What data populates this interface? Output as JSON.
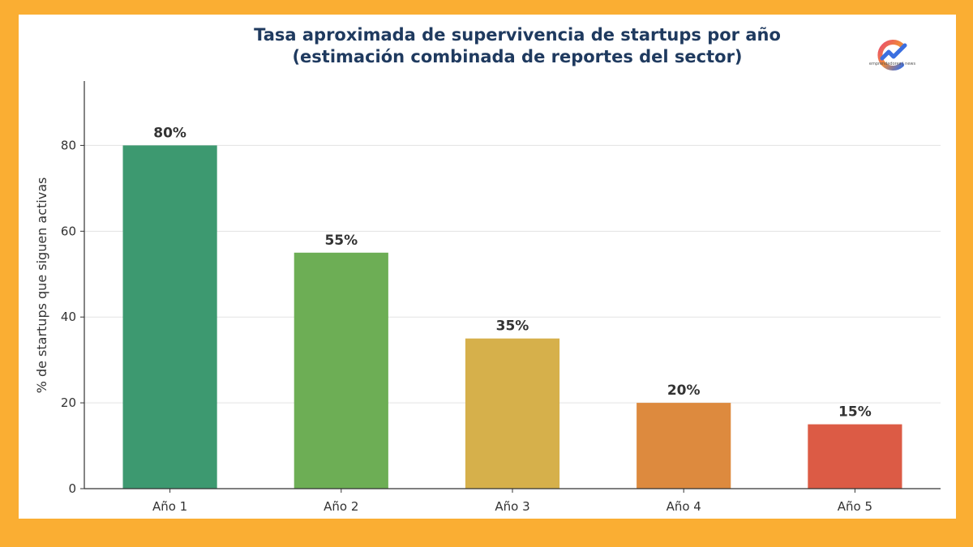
{
  "chart_data": {
    "type": "bar",
    "title": "Tasa aproximada de supervivencia de startups por año",
    "subtitle": "(estimación combinada de reportes del sector)",
    "xlabel": "",
    "ylabel": "% de startups que siguen activas",
    "categories": [
      "Año 1",
      "Año 2",
      "Año 3",
      "Año 4",
      "Año 5"
    ],
    "values": [
      80,
      55,
      35,
      20,
      15
    ],
    "data_labels": [
      "80%",
      "55%",
      "35%",
      "20%",
      "15%"
    ],
    "colors": [
      "#3D9970",
      "#6DAE55",
      "#D6B04B",
      "#DD8A3E",
      "#DC5B45"
    ],
    "ylim": [
      0,
      95
    ],
    "yticks": [
      0,
      20,
      40,
      60,
      80
    ],
    "grid": true,
    "legend": "none"
  },
  "brand": {
    "logo_icon": "emprendedores-logo-icon",
    "logo_text": "emprendedores | news"
  },
  "colors": {
    "border": "#FAAE33",
    "background": "#FFFFFF",
    "title": "#1F3A5F",
    "axis": "#333333",
    "grid": "#E3E3E3"
  }
}
